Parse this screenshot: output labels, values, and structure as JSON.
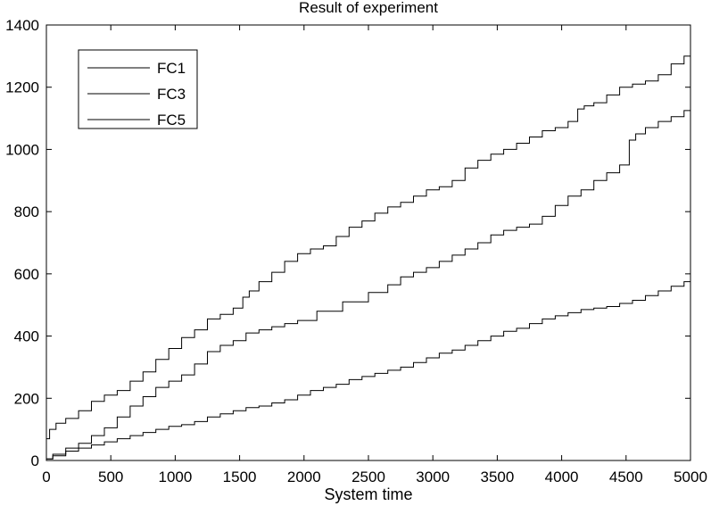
{
  "chart_data": {
    "type": "line",
    "title": "Result of experiment",
    "xlabel": "System time",
    "ylabel": "",
    "xlim": [
      0,
      5000
    ],
    "ylim": [
      0,
      1400
    ],
    "xticks": [
      0,
      500,
      1000,
      1500,
      2000,
      2500,
      3000,
      3500,
      4000,
      4500,
      5000
    ],
    "yticks": [
      0,
      200,
      400,
      600,
      800,
      1000,
      1200,
      1400
    ],
    "grid": false,
    "legend_position": "top-left",
    "line_color": "#000000",
    "series": [
      {
        "name": "FC1",
        "x": [
          0,
          50,
          100,
          200,
          300,
          400,
          500,
          600,
          700,
          800,
          900,
          1000,
          1100,
          1200,
          1300,
          1400,
          1500,
          1550,
          1600,
          1700,
          1800,
          1900,
          2000,
          2100,
          2200,
          2300,
          2400,
          2500,
          2600,
          2700,
          2800,
          2900,
          3000,
          3100,
          3200,
          3300,
          3400,
          3500,
          3600,
          3700,
          3800,
          3900,
          4000,
          4100,
          4150,
          4200,
          4300,
          4400,
          4500,
          4600,
          4700,
          4800,
          4900,
          5000
        ],
        "y": [
          70,
          100,
          120,
          135,
          160,
          190,
          210,
          225,
          255,
          285,
          325,
          360,
          395,
          420,
          455,
          470,
          490,
          525,
          545,
          575,
          605,
          640,
          665,
          680,
          690,
          720,
          750,
          770,
          795,
          815,
          830,
          850,
          870,
          880,
          900,
          940,
          965,
          985,
          1000,
          1020,
          1040,
          1060,
          1070,
          1090,
          1130,
          1140,
          1150,
          1175,
          1200,
          1210,
          1220,
          1240,
          1275,
          1300
        ]
      },
      {
        "name": "FC3",
        "x": [
          0,
          100,
          200,
          300,
          400,
          500,
          600,
          700,
          800,
          900,
          1000,
          1100,
          1200,
          1300,
          1400,
          1500,
          1600,
          1700,
          1800,
          1900,
          2000,
          2200,
          2400,
          2600,
          2700,
          2800,
          2900,
          3000,
          3100,
          3200,
          3300,
          3400,
          3500,
          3600,
          3700,
          3800,
          3900,
          4000,
          4100,
          4200,
          4300,
          4400,
          4500,
          4550,
          4600,
          4700,
          4800,
          4900,
          5000
        ],
        "y": [
          5,
          20,
          40,
          55,
          80,
          105,
          140,
          175,
          205,
          235,
          255,
          275,
          310,
          350,
          370,
          385,
          410,
          420,
          430,
          440,
          450,
          480,
          510,
          540,
          565,
          590,
          605,
          620,
          640,
          660,
          680,
          700,
          725,
          740,
          750,
          760,
          785,
          820,
          850,
          870,
          900,
          925,
          950,
          1030,
          1050,
          1070,
          1090,
          1105,
          1125
        ]
      },
      {
        "name": "FC5",
        "x": [
          0,
          100,
          200,
          300,
          400,
          500,
          600,
          700,
          800,
          900,
          1000,
          1100,
          1200,
          1300,
          1400,
          1500,
          1600,
          1700,
          1800,
          1900,
          2000,
          2100,
          2200,
          2300,
          2400,
          2500,
          2600,
          2700,
          2800,
          2900,
          3000,
          3100,
          3200,
          3300,
          3400,
          3500,
          3600,
          3700,
          3800,
          3900,
          4000,
          4100,
          4200,
          4300,
          4400,
          4500,
          4600,
          4700,
          4800,
          4900,
          5000
        ],
        "y": [
          5,
          15,
          30,
          40,
          50,
          60,
          70,
          80,
          90,
          100,
          110,
          115,
          125,
          140,
          150,
          160,
          170,
          175,
          185,
          195,
          210,
          225,
          235,
          245,
          260,
          270,
          280,
          290,
          300,
          315,
          330,
          345,
          355,
          370,
          385,
          400,
          415,
          425,
          440,
          455,
          465,
          475,
          485,
          490,
          495,
          505,
          515,
          530,
          545,
          560,
          575
        ]
      }
    ]
  }
}
